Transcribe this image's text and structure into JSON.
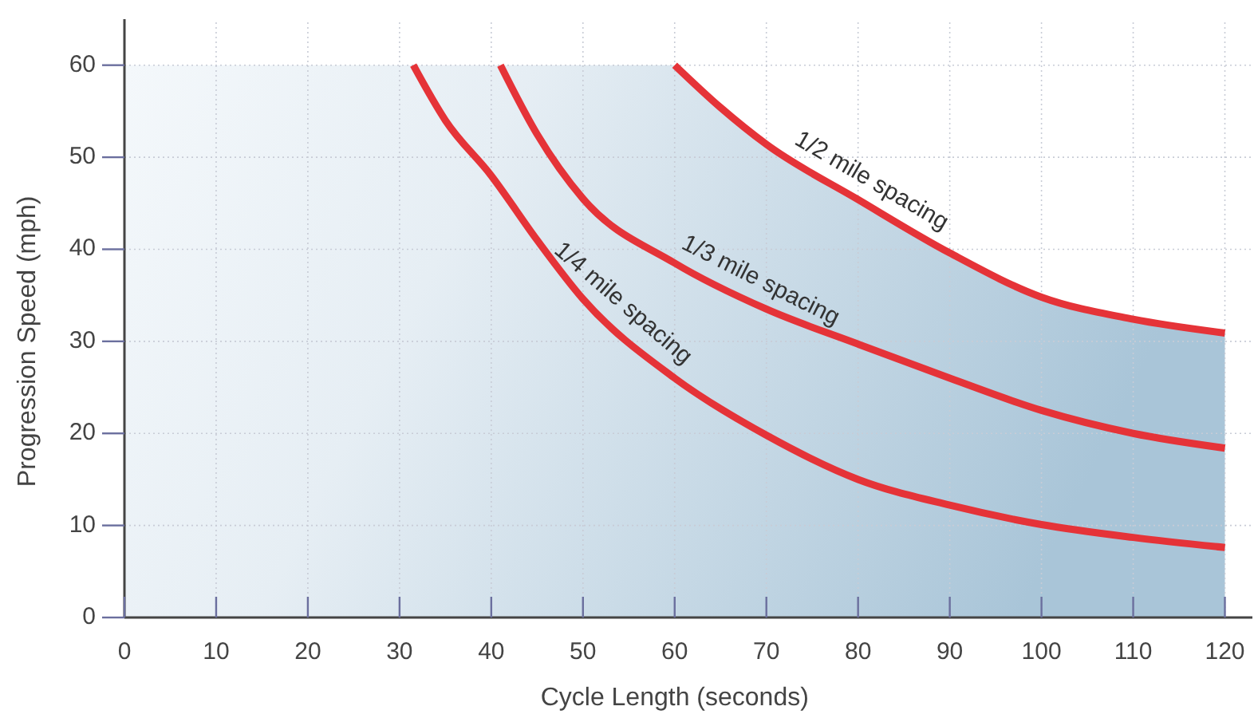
{
  "chart_data": {
    "type": "line",
    "xlabel": "Cycle Length (seconds)",
    "ylabel": "Progression Speed (mph)",
    "xlim": [
      0,
      123
    ],
    "ylim": [
      0,
      65
    ],
    "xticks": [
      0,
      10,
      20,
      30,
      40,
      50,
      60,
      70,
      80,
      90,
      100,
      110,
      120
    ],
    "yticks": [
      0,
      10,
      20,
      30,
      40,
      50,
      60
    ],
    "grid": true,
    "line_style": "solid",
    "marker": "none",
    "series": [
      {
        "name": "1/4 mile spacing",
        "color": "#e53338",
        "x": [
          31.5,
          35,
          40,
          45,
          50,
          60,
          70,
          80,
          90,
          100,
          110,
          120
        ],
        "values": [
          60,
          54,
          48,
          41,
          34.6,
          26,
          19.8,
          15,
          12.2,
          10.1,
          8.7,
          7.6
        ]
      },
      {
        "name": "1/3 mile spacing",
        "color": "#e53338",
        "x": [
          41,
          45,
          50,
          60,
          70,
          80,
          90,
          100,
          110,
          120
        ],
        "values": [
          60,
          52.5,
          45.5,
          38.5,
          33.5,
          29.7,
          26,
          22.5,
          20,
          18.4
        ]
      },
      {
        "name": "1/2 mile spacing",
        "color": "#e53338",
        "x": [
          60,
          65,
          70,
          80,
          90,
          100,
          110,
          120
        ],
        "values": [
          60,
          55.4,
          51.4,
          45.4,
          39.6,
          34.8,
          32.4,
          30.9
        ]
      }
    ]
  }
}
